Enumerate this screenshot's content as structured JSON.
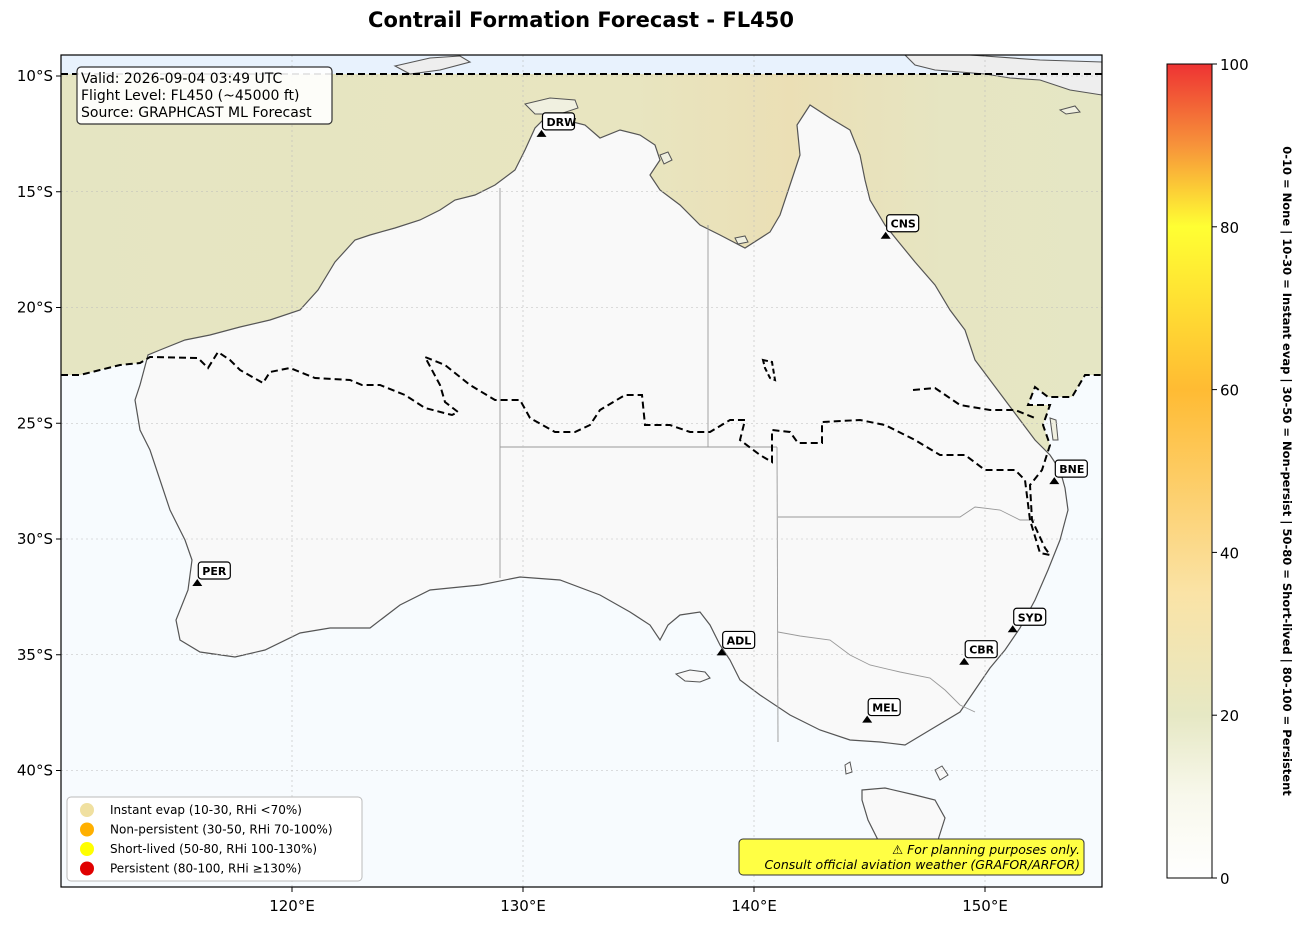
{
  "title": "Contrail Formation Forecast - FL450",
  "info_box": {
    "valid": "Valid: 2026-09-04 03:49 UTC",
    "flight_level": "Flight Level: FL450 (~45000 ft)",
    "source": "Source: GRAPHCAST ML Forecast"
  },
  "axes": {
    "lon_ticks": [
      "120°E",
      "130°E",
      "140°E",
      "150°E"
    ],
    "lat_ticks": [
      "10°S",
      "15°S",
      "20°S",
      "25°S",
      "30°S",
      "35°S",
      "40°S"
    ]
  },
  "cities": [
    {
      "code": "DRW",
      "lon": 130.8,
      "lat": -12.5
    },
    {
      "code": "CNS",
      "lon": 145.7,
      "lat": -16.9
    },
    {
      "code": "BNE",
      "lon": 153.0,
      "lat": -27.5
    },
    {
      "code": "PER",
      "lon": 115.9,
      "lat": -31.9
    },
    {
      "code": "SYD",
      "lon": 151.2,
      "lat": -33.9
    },
    {
      "code": "CBR",
      "lon": 149.1,
      "lat": -35.3
    },
    {
      "code": "ADL",
      "lon": 138.6,
      "lat": -34.9
    },
    {
      "code": "MEL",
      "lon": 144.9,
      "lat": -37.8
    }
  ],
  "legend": {
    "items": [
      {
        "label": "Instant evap (10-30, RHi <70%)",
        "color": "#f0e0a0"
      },
      {
        "label": "Non-persistent (30-50, RHi 70-100%)",
        "color": "#ffb000"
      },
      {
        "label": "Short-lived (50-80, RHi 100-130%)",
        "color": "#ffff00"
      },
      {
        "label": "Persistent (80-100, RHi ≥130%)",
        "color": "#e00000"
      }
    ]
  },
  "warning": {
    "line1": "⚠ For planning purposes only.",
    "line2": "Consult official aviation weather (GRAFOR/ARFOR)"
  },
  "colorbar": {
    "ticks": [
      "0",
      "20",
      "40",
      "60",
      "80",
      "100"
    ],
    "label": "0-10 = None  |  10-30 = Instant evap  |  30-50 = Non-persist  |  50-80 = Short-lived  |  80-100 = Persistent"
  }
}
